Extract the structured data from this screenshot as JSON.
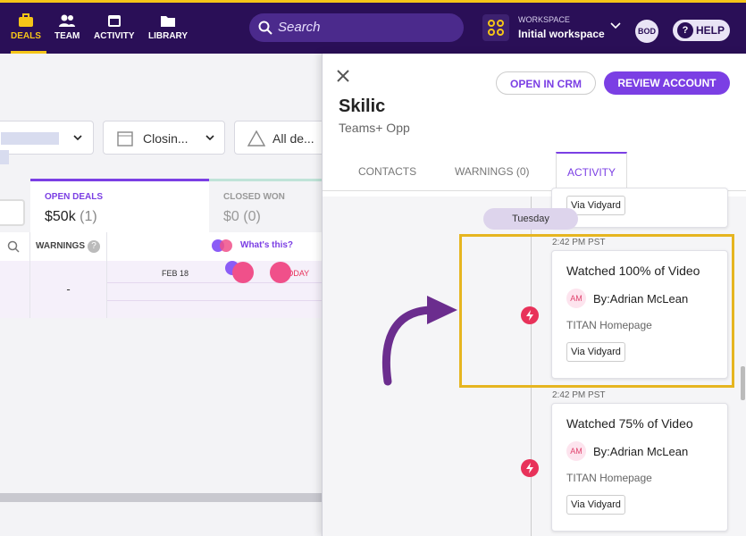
{
  "nav": {
    "items": [
      "DEALS",
      "TEAM",
      "ACTIVITY",
      "LIBRARY"
    ],
    "search": "Search",
    "workspace_label": "WORKSPACE",
    "workspace": "Initial workspace",
    "user": "BOD",
    "help": "HELP"
  },
  "filters": [
    "Closin...",
    "All de..."
  ],
  "deal_tabs": [
    {
      "label": "OPEN DEALS",
      "amount": "$50k",
      "count": "(1)"
    },
    {
      "label": "CLOSED WON",
      "amount": "$0",
      "count": "(0)"
    }
  ],
  "table": {
    "header": "WARNINGS",
    "whats_this": "What's this?",
    "date": "FEB 18",
    "today": "TODAY",
    "row": "-"
  },
  "panel": {
    "open_crm": "OPEN IN CRM",
    "review": "REVIEW ACCOUNT",
    "account": "Skilic",
    "opportunity": "Teams+ Opp",
    "tabs": [
      "CONTACTS",
      "WARNINGS (0)",
      "ACTIVITY"
    ],
    "previous_via": "Via Vidyard",
    "day": "Tuesday",
    "events": [
      {
        "time": "2:42 PM PST",
        "title": "Watched 100% of Video",
        "initials": "AM",
        "by": "By:Adrian McLean",
        "source": "TITAN Homepage",
        "via": "Via Vidyard"
      },
      {
        "time": "2:42 PM PST",
        "title": "Watched 75% of Video",
        "initials": "AM",
        "by": "By:Adrian McLean",
        "source": "TITAN Homepage",
        "via": "Via Vidyard"
      }
    ]
  }
}
